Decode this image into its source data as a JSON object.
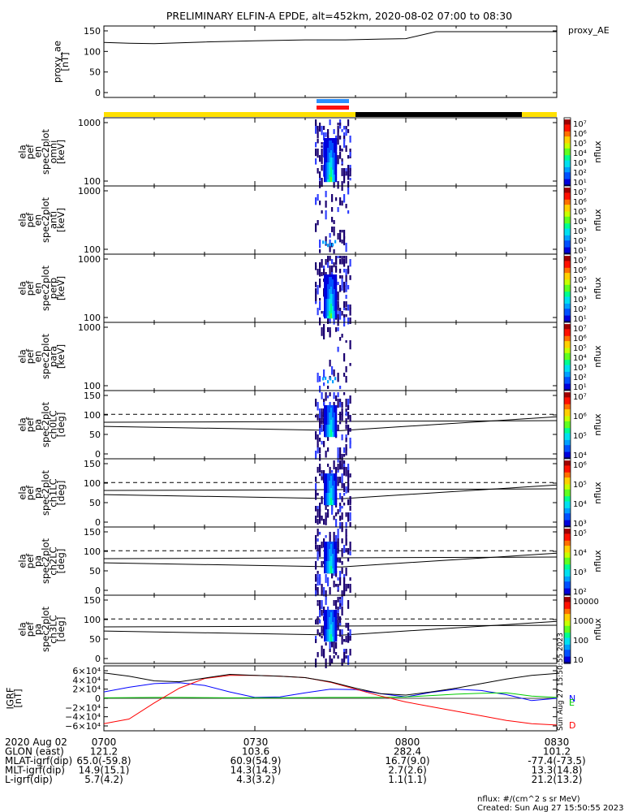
{
  "title": "PRELIMINARY ELFIN-A EPDE, alt=452km, 2020-08-02 07:00 to 08:30",
  "chart_data": [
    {
      "type": "line",
      "id": "proxy_ae",
      "ylabel": [
        "proxy_ae",
        "[nT]"
      ],
      "legend": "proxy_AE",
      "yticks": [
        "150",
        "100",
        "50",
        "0"
      ],
      "ylim": [
        0,
        160
      ],
      "x": [
        "07:00",
        "07:05",
        "07:10",
        "07:20",
        "07:30",
        "07:40",
        "07:48",
        "07:55",
        "08:00",
        "08:06",
        "08:12",
        "08:20",
        "08:30"
      ],
      "y": [
        122,
        120,
        119,
        123,
        126,
        128,
        128,
        130,
        131,
        148,
        148,
        148,
        148
      ]
    },
    {
      "type": "heatmap",
      "id": "omni",
      "ylabel": [
        "ela",
        "pef",
        "en",
        "spec2plot",
        "omni",
        "[keV]"
      ],
      "yticks": [
        "1000",
        "100"
      ],
      "colorbar": {
        "label": "nflux",
        "ticks": [
          "10⁷",
          "10⁶",
          "10⁵",
          "10⁴",
          "10³",
          "10²",
          "10¹"
        ]
      }
    },
    {
      "type": "heatmap",
      "id": "anti",
      "ylabel": [
        "ela",
        "pef",
        "en",
        "spec2plot",
        "anti",
        "[keV]"
      ],
      "yticks": [
        "1000",
        "100"
      ],
      "colorbar": {
        "label": "nflux",
        "ticks": [
          "10⁷",
          "10⁶",
          "10⁵",
          "10⁴",
          "10³",
          "10²",
          "10¹"
        ]
      }
    },
    {
      "type": "heatmap",
      "id": "perp",
      "ylabel": [
        "ela",
        "pef",
        "en",
        "spec2plot",
        "perp",
        "[keV]"
      ],
      "yticks": [
        "1000",
        "100"
      ],
      "colorbar": {
        "label": "nflux",
        "ticks": [
          "10⁷",
          "10⁶",
          "10⁵",
          "10⁴",
          "10³",
          "10²",
          "10¹"
        ]
      }
    },
    {
      "type": "heatmap",
      "id": "para",
      "ylabel": [
        "ela",
        "pef",
        "en",
        "spec2plot",
        "para",
        "[keV]"
      ],
      "yticks": [
        "1000",
        "100"
      ],
      "colorbar": {
        "label": "nflux",
        "ticks": [
          "10⁷",
          "10⁶",
          "10⁵",
          "10⁴",
          "10³",
          "10²",
          "10¹"
        ]
      }
    },
    {
      "type": "heatmap",
      "id": "ch0LC",
      "ylabel": [
        "ela",
        "pef",
        "pa",
        "spec2plot",
        "ch0LC",
        "[deg]"
      ],
      "yticks": [
        "150",
        "100",
        "50",
        "0"
      ],
      "colorbar": {
        "label": "nflux",
        "ticks": [
          "10⁷",
          "10⁶",
          "10⁵",
          "10⁴"
        ]
      }
    },
    {
      "type": "heatmap",
      "id": "ch1LC",
      "ylabel": [
        "ela",
        "pef",
        "pa",
        "spec2plot",
        "ch1LC",
        "[deg]"
      ],
      "yticks": [
        "150",
        "100",
        "50",
        "0"
      ],
      "colorbar": {
        "label": "nflux",
        "ticks": [
          "10⁶",
          "10⁵",
          "10⁴",
          "10³"
        ]
      }
    },
    {
      "type": "heatmap",
      "id": "ch2LC",
      "ylabel": [
        "ela",
        "pef",
        "pa",
        "spec2plot",
        "ch2LC",
        "[deg]"
      ],
      "yticks": [
        "150",
        "100",
        "50",
        "0"
      ],
      "colorbar": {
        "label": "nflux",
        "ticks": [
          "10⁵",
          "10⁴",
          "10³",
          "10²"
        ]
      }
    },
    {
      "type": "heatmap",
      "id": "ch3LC",
      "ylabel": [
        "ela",
        "pef",
        "pa",
        "spec2plot",
        "ch3LC",
        "[deg]"
      ],
      "yticks": [
        "150",
        "100",
        "50",
        "0"
      ],
      "colorbar": {
        "label": "nflux",
        "ticks": [
          "10000",
          "1000",
          "100",
          "10"
        ]
      }
    },
    {
      "type": "line",
      "id": "igrf",
      "ylabel": [
        "IGRF",
        "[nT]"
      ],
      "yticks": [
        "6×10⁴",
        "4×10⁴",
        "2×10⁴",
        "0",
        "−2×10⁴",
        "−4×10⁴",
        "−6×10⁴"
      ],
      "ylim": [
        -60000,
        60000
      ],
      "x": [
        "07:00",
        "07:05",
        "07:10",
        "07:15",
        "07:20",
        "07:25",
        "07:30",
        "07:35",
        "07:40",
        "07:45",
        "07:50",
        "07:55",
        "08:00",
        "08:05",
        "08:10",
        "08:15",
        "08:20",
        "08:25",
        "08:30"
      ],
      "series": [
        {
          "name": "N",
          "color": "#0000ff",
          "values": [
            14000,
            24000,
            32000,
            34000,
            28000,
            14000,
            2000,
            3000,
            12000,
            20000,
            19000,
            10000,
            3000,
            13000,
            20000,
            17000,
            8000,
            -5000,
            0
          ]
        },
        {
          "name": "E",
          "color": "#00cc00",
          "values": [
            1000,
            1500,
            2000,
            2000,
            1500,
            1000,
            1000,
            1000,
            1500,
            2000,
            2000,
            2000,
            3000,
            6000,
            9000,
            11000,
            12000,
            5000,
            2000
          ]
        },
        {
          "name": "D",
          "color": "#ff0000",
          "values": [
            -55000,
            -45000,
            -10000,
            22000,
            43000,
            50000,
            50000,
            48000,
            45000,
            35000,
            20000,
            5000,
            -8000,
            -18000,
            -28000,
            -38000,
            -48000,
            -55000,
            -58000
          ]
        },
        {
          "name": "",
          "color": "#000000",
          "values": [
            55000,
            48000,
            38000,
            36000,
            44000,
            52000,
            50000,
            48000,
            45000,
            36000,
            22000,
            10000,
            7000,
            14000,
            22000,
            32000,
            42000,
            50000,
            54000
          ]
        }
      ]
    }
  ],
  "xlabel_rows": [
    {
      "label": "2020 Aug 02",
      "values": [
        "0700",
        "0730",
        "0800",
        "0830"
      ]
    },
    {
      "label": "GLON (east)",
      "values": [
        "121.2",
        "103.6",
        "282.4",
        "101.2"
      ]
    },
    {
      "label": "MLAT-igrf(dip)",
      "values": [
        "65.0(-59.8)",
        "60.9(54.9)",
        "16.7(9.0)",
        "-77.4(-73.5)"
      ]
    },
    {
      "label": "MLT-igrf(dip)",
      "values": [
        "14.9(15.1)",
        "14.3(14.3)",
        "2.7(2.6)",
        "13.3(14.8)"
      ]
    },
    {
      "label": "L-igrf(dip)",
      "values": [
        "5.7(4.2)",
        "4.3(3.2)",
        "1.1(1.1)",
        "21.2(13.2)"
      ]
    }
  ],
  "footer": {
    "units": "nflux: #/(cm^2 s sr MeV)",
    "created": "Created: Sun Aug 27 15:50:55 2023",
    "stamp": "Sun Aug 27 15:50:55 2023"
  },
  "colors": {
    "fast_survey": "#ffe000",
    "shadow": "#000000",
    "spin_blue": "#2b8fff",
    "spin_red": "#ff1010"
  }
}
